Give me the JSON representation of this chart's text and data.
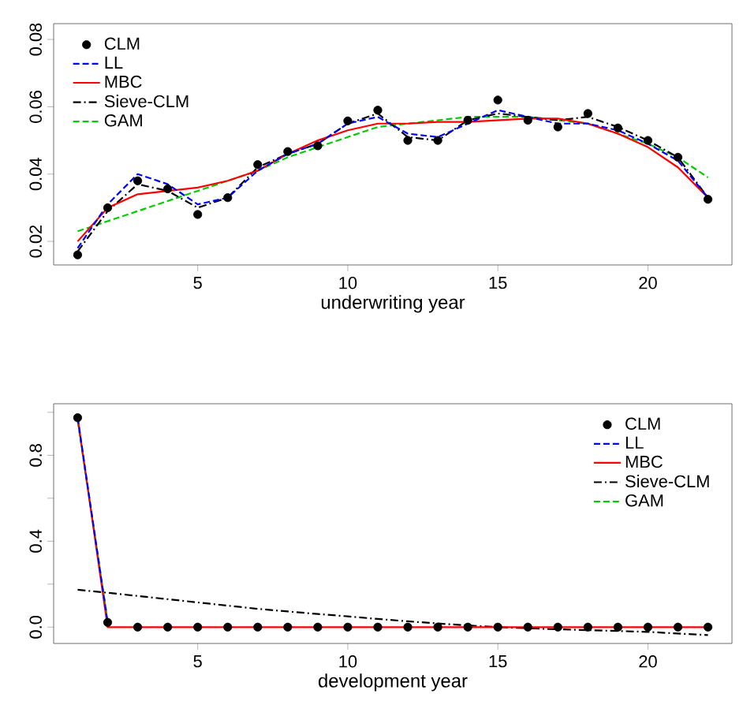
{
  "chart_data": [
    {
      "type": "line",
      "xlabel": "underwriting year",
      "x": [
        1,
        2,
        3,
        4,
        5,
        6,
        7,
        8,
        9,
        10,
        11,
        12,
        13,
        14,
        15,
        16,
        17,
        18,
        19,
        20,
        21,
        22
      ],
      "xlim": [
        0.2,
        22.8
      ],
      "xticks": [
        5,
        10,
        15,
        20
      ],
      "ylim": [
        0.013,
        0.0847
      ],
      "yticks": [
        {
          "value": 0.02,
          "label": "0.02"
        },
        {
          "value": 0.04,
          "label": "0.04"
        },
        {
          "value": 0.06,
          "label": "0.06"
        },
        {
          "value": 0.08,
          "label": "0.08"
        }
      ],
      "legend": "top left",
      "grid": false,
      "series": [
        {
          "name": "CLM",
          "type": "scatter",
          "marker": "circle",
          "color": "#000000",
          "values": [
            0.016,
            0.03,
            0.038,
            0.0356,
            0.028,
            0.033,
            0.0428,
            0.0467,
            0.0484,
            0.0558,
            0.059,
            0.05,
            0.05,
            0.056,
            0.062,
            0.056,
            0.054,
            0.058,
            0.0537,
            0.05,
            0.045,
            0.0325
          ]
        },
        {
          "name": "LL",
          "line_style": "dashed",
          "color": "#0000ff",
          "values": [
            0.018,
            0.031,
            0.04,
            0.037,
            0.031,
            0.033,
            0.041,
            0.046,
            0.049,
            0.055,
            0.057,
            0.052,
            0.051,
            0.055,
            0.059,
            0.057,
            0.055,
            0.055,
            0.053,
            0.049,
            0.044,
            0.033
          ]
        },
        {
          "name": "MBC",
          "line_style": "solid",
          "color": "#ff0000",
          "values": [
            0.02,
            0.03,
            0.034,
            0.035,
            0.036,
            0.038,
            0.041,
            0.046,
            0.05,
            0.053,
            0.055,
            0.055,
            0.0555,
            0.0555,
            0.056,
            0.0565,
            0.0565,
            0.055,
            0.052,
            0.048,
            0.042,
            0.033
          ]
        },
        {
          "name": "Sieve-CLM",
          "line_style": "dashdot",
          "color": "#000000",
          "values": [
            0.017,
            0.029,
            0.037,
            0.035,
            0.03,
            0.033,
            0.042,
            0.046,
            0.049,
            0.055,
            0.058,
            0.051,
            0.05,
            0.056,
            0.058,
            0.057,
            0.056,
            0.057,
            0.054,
            0.05,
            0.045,
            0.033
          ]
        },
        {
          "name": "GAM",
          "line_style": "dashed",
          "color": "#00cd00",
          "values": [
            0.023,
            0.026,
            0.029,
            0.032,
            0.035,
            0.038,
            0.041,
            0.045,
            0.048,
            0.051,
            0.054,
            0.055,
            0.056,
            0.057,
            0.057,
            0.057,
            0.056,
            0.055,
            0.052,
            0.049,
            0.045,
            0.039
          ]
        }
      ]
    },
    {
      "type": "line",
      "xlabel": "development year",
      "x": [
        1,
        2,
        3,
        4,
        5,
        6,
        7,
        8,
        9,
        10,
        11,
        12,
        13,
        14,
        15,
        16,
        17,
        18,
        19,
        20,
        21,
        22
      ],
      "xlim": [
        0.2,
        22.8
      ],
      "xticks": [
        5,
        10,
        15,
        20
      ],
      "ylim": [
        -0.076,
        1.04
      ],
      "yticks": [
        {
          "value": 0,
          "label": "0.0"
        },
        {
          "value": 0.2,
          "label": null
        },
        {
          "value": 0.4,
          "label": "0.4"
        },
        {
          "value": 0.6,
          "label": null
        },
        {
          "value": 0.8,
          "label": "0.8"
        },
        {
          "value": 1.0,
          "label": null
        }
      ],
      "legend": "top right",
      "grid": false,
      "series": [
        {
          "name": "CLM",
          "type": "scatter",
          "marker": "circle",
          "color": "#000000",
          "values": [
            0.975,
            0.022,
            0,
            0,
            0,
            0,
            0,
            0,
            0,
            0,
            0,
            0,
            0,
            0,
            0,
            0,
            0,
            0,
            0,
            0,
            0,
            0
          ]
        },
        {
          "name": "LL",
          "line_style": "dashed",
          "color": "#0000ff",
          "values": [
            0.975,
            0.022,
            null,
            null,
            null,
            null,
            null,
            null,
            null,
            null,
            null,
            null,
            null,
            null,
            null,
            null,
            null,
            null,
            null,
            null,
            null,
            null
          ]
        },
        {
          "name": "MBC",
          "line_style": "solid",
          "color": "#ff0000",
          "values": [
            0.975,
            0.0,
            0,
            0,
            0,
            0,
            0,
            0,
            0,
            0,
            0,
            0,
            0,
            0,
            0,
            0,
            0,
            0,
            0,
            0,
            0,
            0
          ]
        },
        {
          "name": "Sieve-CLM",
          "line_style": "dashdot",
          "color": "#000000",
          "values": [
            0.174,
            0.16,
            0.145,
            0.13,
            0.115,
            0.1,
            0.085,
            0.073,
            0.061,
            0.05,
            0.038,
            0.027,
            0.017,
            0.008,
            0.0,
            -0.005,
            -0.01,
            -0.014,
            -0.018,
            -0.022,
            -0.03,
            -0.037
          ]
        },
        {
          "name": "GAM",
          "line_style": "dashed",
          "color": "#00cd00",
          "values": [
            0.96,
            0.03,
            null,
            null,
            null,
            null,
            null,
            null,
            null,
            null,
            null,
            null,
            null,
            null,
            null,
            null,
            null,
            null,
            null,
            null,
            null,
            null
          ]
        }
      ]
    }
  ]
}
